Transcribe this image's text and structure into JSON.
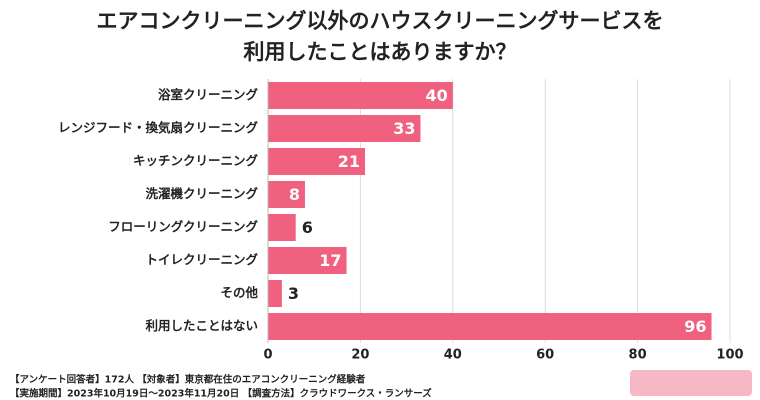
{
  "chart_data": {
    "type": "bar",
    "orientation": "horizontal",
    "title": [
      "エアコンクリーニング以外のハウスクリーニングサービスを",
      "利用したことはありますか？"
    ],
    "categories": [
      "浴室クリーニング",
      "レンジフード・換気扇クリーニング",
      "キッチンクリーニング",
      "洗濯機クリーニング",
      "フローリングクリーニング",
      "トイレクリーニング",
      "その他",
      "利用したことはない"
    ],
    "values": [
      40,
      33,
      21,
      8,
      6,
      17,
      3,
      96
    ],
    "color": "#f0607f",
    "xlim": [
      0,
      100
    ],
    "xticks": [
      0,
      20,
      40,
      60,
      80,
      100
    ],
    "grid": true,
    "notes": [
      "【アンケート回答者】172人 【対象者】東京都在住のエアコンクリーニング経験者",
      "【実施期間】2023年10月19日～2023年11月20日 【調査方法】クラウドワークス・ランサーズ"
    ]
  }
}
